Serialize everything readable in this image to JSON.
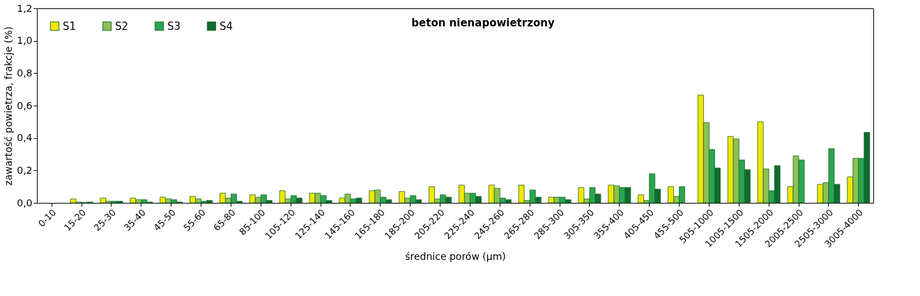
{
  "chart_data": {
    "type": "bar",
    "title": "beton nienapowietrzony",
    "xlabel": "średnice porów (μm)",
    "ylabel": "zawartość powietrza, frakcje (%)",
    "categories": [
      "0-10",
      "15-20",
      "25-30",
      "35-40",
      "45-50",
      "55-60",
      "65-80",
      "85-100",
      "105-120",
      "125-140",
      "145-160",
      "165-180",
      "185-200",
      "205-220",
      "225-240",
      "245-260",
      "265-280",
      "285-300",
      "305-350",
      "355-400",
      "405-450",
      "455-500",
      "505-1000",
      "1005-1500",
      "1505-2000",
      "2005-2500",
      "2505-3000",
      "3005-4000"
    ],
    "series": [
      {
        "name": "S1",
        "color": "#f2e600",
        "values": [
          0,
          0.025,
          0.03,
          0.03,
          0.035,
          0.04,
          0.06,
          0.05,
          0.075,
          0.06,
          0.03,
          0.075,
          0.07,
          0.1,
          0.11,
          0.11,
          0.11,
          0.035,
          0.095,
          0.11,
          0.05,
          0.1,
          0.665,
          0.41,
          0.5,
          0.1,
          0.115,
          0.16
        ]
      },
      {
        "name": "S2",
        "color": "#8dc153",
        "values": [
          0,
          0.005,
          0.01,
          0.02,
          0.025,
          0.025,
          0.03,
          0.035,
          0.025,
          0.06,
          0.055,
          0.08,
          0.03,
          0.025,
          0.06,
          0.09,
          0.015,
          0.035,
          0.025,
          0.105,
          0.015,
          0.04,
          0.495,
          0.395,
          0.21,
          0.29,
          0.125,
          0.275
        ]
      },
      {
        "name": "S3",
        "color": "#2aa54f",
        "values": [
          0,
          0.003,
          0.01,
          0.02,
          0.02,
          0.01,
          0.055,
          0.05,
          0.045,
          0.045,
          0.025,
          0.035,
          0.045,
          0.05,
          0.06,
          0.03,
          0.08,
          0.035,
          0.095,
          0.095,
          0.18,
          0.1,
          0.33,
          0.265,
          0.075,
          0.265,
          0.335,
          0.275
        ]
      },
      {
        "name": "S4",
        "color": "#0f6b2e",
        "values": [
          0,
          0.005,
          0.01,
          0.005,
          0.005,
          0.015,
          0.01,
          0.015,
          0.03,
          0.015,
          0.03,
          0.02,
          0.02,
          0.035,
          0.04,
          0.02,
          0.035,
          0.02,
          0.055,
          0.095,
          0.085,
          0,
          0.215,
          0.205,
          0.23,
          0,
          0.115,
          0.435
        ]
      }
    ],
    "ylim": [
      0,
      1.2
    ],
    "yticks": [
      {
        "value": 0,
        "label": "0,0"
      },
      {
        "value": 0.2,
        "label": "0,2"
      },
      {
        "value": 0.4,
        "label": "0,4"
      },
      {
        "value": 0.6,
        "label": "0,6"
      },
      {
        "value": 0.8,
        "label": "0,8"
      },
      {
        "value": 1.0,
        "label": "1,0"
      },
      {
        "value": 1.2,
        "label": "1,2"
      }
    ],
    "legend": "top left",
    "grid": false
  }
}
